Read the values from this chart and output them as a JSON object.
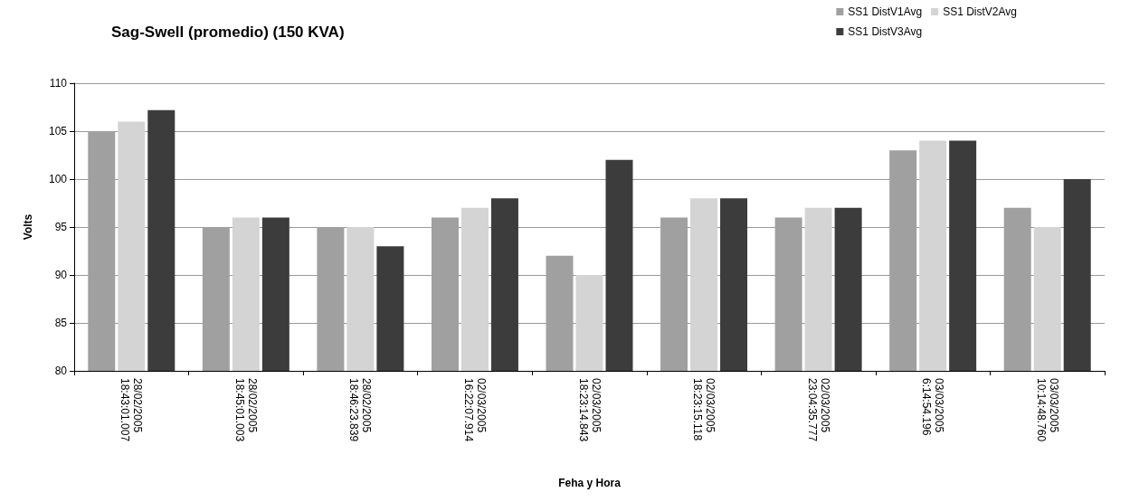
{
  "chart_data": {
    "type": "bar",
    "title": "Sag-Swell (promedio) (150 KVA)",
    "xlabel": "Feha y Hora",
    "ylabel": "Volts",
    "categories": [
      "28/02/2005\n18:43:01.007",
      "28/02/2005\n18:45:01.003",
      "28/02/2005\n18:46:23.839",
      "02/03/2005\n16:22:07.914",
      "02/03/2005\n18:23:14.843",
      "02/03/2005\n18:23:15.118",
      "02/03/2005\n23:04:35.777",
      "03/03/2005\n6:14:54.196",
      "03/03/2005\n10:14:48.760"
    ],
    "series": [
      {
        "name": "SS1 DistV1Avg",
        "color": "#a0a0a0",
        "values": [
          105,
          95,
          95,
          96,
          92,
          96,
          96,
          103,
          97
        ]
      },
      {
        "name": "SS1 DistV2Avg",
        "color": "#d4d4d4",
        "values": [
          106,
          96,
          95,
          97,
          90,
          98,
          97,
          104,
          95
        ]
      },
      {
        "name": "SS1 DistV3Avg",
        "color": "#3c3c3c",
        "values": [
          107.2,
          96,
          93,
          98,
          102,
          98,
          97,
          104,
          100
        ]
      }
    ],
    "ylim": [
      80,
      110
    ],
    "yticks": [
      80,
      85,
      90,
      95,
      100,
      105,
      110
    ],
    "grid": "y",
    "legend": "top right"
  }
}
